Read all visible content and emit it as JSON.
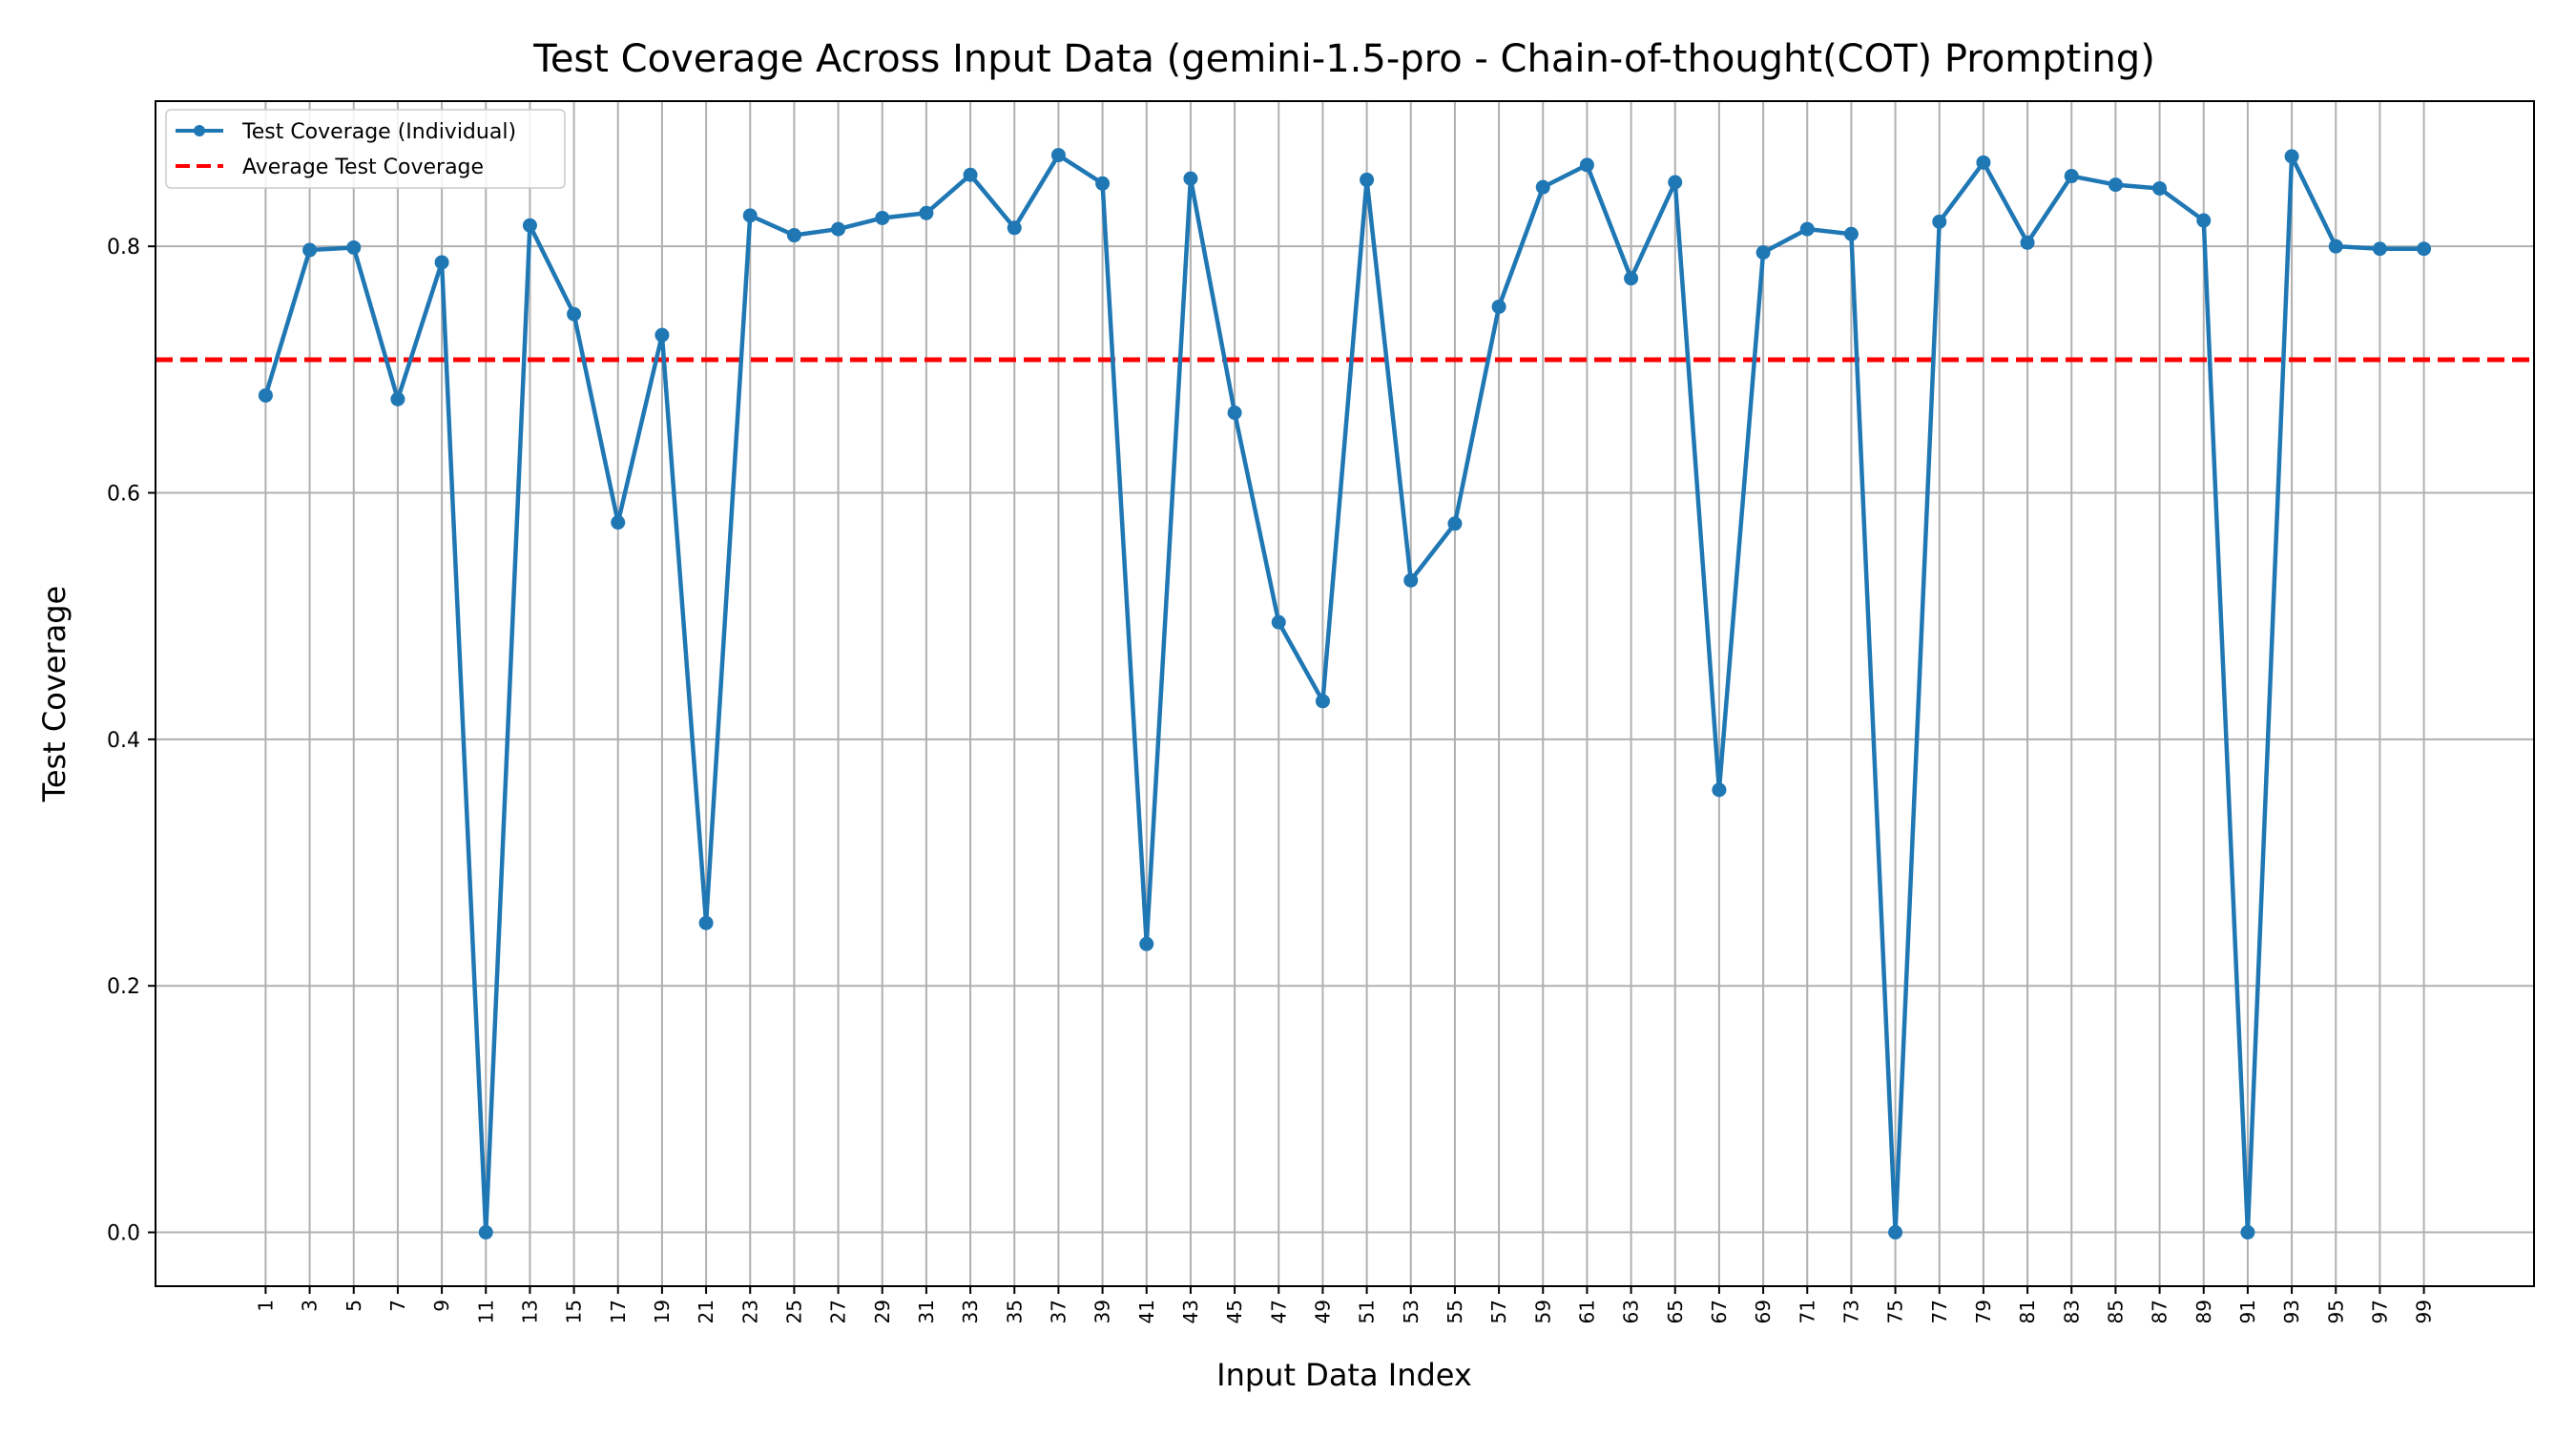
{
  "chart_data": {
    "type": "line",
    "title": "Test Coverage Across Input Data (gemini-1.5-pro - Chain-of-thought(COT) Prompting)",
    "xlabel": "Input Data Index",
    "ylabel": "Test Coverage",
    "x": [
      1,
      3,
      5,
      7,
      9,
      11,
      13,
      15,
      17,
      19,
      21,
      23,
      25,
      27,
      29,
      31,
      33,
      35,
      37,
      39,
      41,
      43,
      45,
      47,
      49,
      51,
      53,
      55,
      57,
      59,
      61,
      63,
      65,
      67,
      69,
      71,
      73,
      75,
      77,
      79,
      81,
      83,
      85,
      87,
      89,
      91,
      93,
      95,
      97,
      99
    ],
    "series": [
      {
        "name": "Test Coverage (Individual)",
        "color": "#1f77b4",
        "style": "solid-with-markers",
        "values": [
          0.679,
          0.797,
          0.799,
          0.676,
          0.787,
          0.0,
          0.817,
          0.745,
          0.576,
          0.728,
          0.251,
          0.825,
          0.809,
          0.814,
          0.823,
          0.827,
          0.858,
          0.815,
          0.874,
          0.851,
          0.234,
          0.855,
          0.665,
          0.495,
          0.431,
          0.854,
          0.529,
          0.575,
          0.751,
          0.848,
          0.866,
          0.774,
          0.852,
          0.359,
          0.795,
          0.814,
          0.81,
          0.0,
          0.82,
          0.868,
          0.803,
          0.857,
          0.85,
          0.847,
          0.821,
          0.0,
          0.873,
          0.8,
          0.798,
          0.798
        ]
      },
      {
        "name": "Average Test Coverage",
        "color": "#ff0000",
        "style": "dashed-horizontal",
        "value": 0.708
      }
    ],
    "xticks": [
      "1",
      "3",
      "5",
      "7",
      "9",
      "11",
      "13",
      "15",
      "17",
      "19",
      "21",
      "23",
      "25",
      "27",
      "29",
      "31",
      "33",
      "35",
      "37",
      "39",
      "41",
      "43",
      "45",
      "47",
      "49",
      "51",
      "53",
      "55",
      "57",
      "59",
      "61",
      "63",
      "65",
      "67",
      "69",
      "71",
      "73",
      "75",
      "77",
      "79",
      "81",
      "83",
      "85",
      "87",
      "89",
      "91",
      "93",
      "95",
      "97",
      "99"
    ],
    "yticks": [
      "0.0",
      "0.2",
      "0.4",
      "0.6",
      "0.8"
    ],
    "ytick_values": [
      0.0,
      0.2,
      0.4,
      0.6,
      0.8
    ],
    "xlim": [
      -4.0,
      104.0
    ],
    "ylim": [
      -0.0437,
      0.9178
    ],
    "grid": true,
    "legend_position": "top-left"
  }
}
